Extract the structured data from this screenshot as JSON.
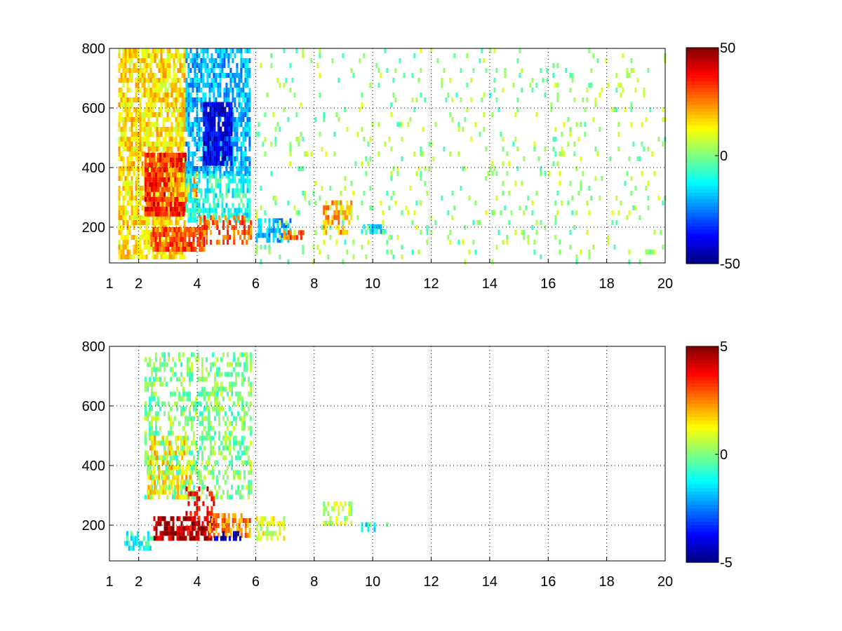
{
  "chart_data": [
    {
      "type": "heatmap",
      "title": "",
      "xlabel": "",
      "ylabel": "",
      "xlim": [
        1,
        20
      ],
      "ylim": [
        80,
        800
      ],
      "x_ticks": [
        1,
        2,
        4,
        6,
        8,
        10,
        12,
        14,
        16,
        18,
        20
      ],
      "y_ticks": [
        200,
        400,
        600,
        800
      ],
      "grid": true,
      "colormap": "jet",
      "colorbar": {
        "min": -50,
        "max": 50,
        "ticks": [
          50,
          0,
          -50
        ]
      },
      "features": [
        {
          "x": [
            1.3,
            3.6
          ],
          "y": [
            100,
            800
          ],
          "value": 15,
          "density": 0.75
        },
        {
          "x": [
            2.2,
            3.6
          ],
          "y": [
            250,
            450
          ],
          "value": 35,
          "density": 0.9
        },
        {
          "x": [
            2.4,
            4.2
          ],
          "y": [
            130,
            200
          ],
          "value": 30,
          "density": 0.85
        },
        {
          "x": [
            3.0,
            4.0
          ],
          "y": [
            300,
            400
          ],
          "value": 20,
          "density": 0.8
        },
        {
          "x": [
            3.6,
            5.8
          ],
          "y": [
            380,
            800
          ],
          "value": -20,
          "density": 0.7
        },
        {
          "x": [
            4.2,
            5.2
          ],
          "y": [
            420,
            620
          ],
          "value": -40,
          "density": 0.85
        },
        {
          "x": [
            3.6,
            5.8
          ],
          "y": [
            220,
            380
          ],
          "value": -10,
          "density": 0.6
        },
        {
          "x": [
            4.0,
            5.8
          ],
          "y": [
            150,
            240
          ],
          "value": 28,
          "density": 0.55
        },
        {
          "x": [
            6.0,
            7.2
          ],
          "y": [
            150,
            230
          ],
          "value": -20,
          "density": 0.6
        },
        {
          "x": [
            6.8,
            7.6
          ],
          "y": [
            160,
            190
          ],
          "value": 28,
          "density": 0.7
        },
        {
          "x": [
            8.3,
            9.3
          ],
          "y": [
            180,
            290
          ],
          "value": 22,
          "density": 0.55
        },
        {
          "x": [
            9.6,
            10.5
          ],
          "y": [
            180,
            210
          ],
          "value": -15,
          "density": 0.6
        },
        {
          "x": [
            6.0,
            20.0
          ],
          "y": [
            80,
            800
          ],
          "value": 2,
          "density": 0.07
        }
      ]
    },
    {
      "type": "heatmap",
      "title": "",
      "xlabel": "",
      "ylabel": "",
      "xlim": [
        1,
        20
      ],
      "ylim": [
        80,
        800
      ],
      "x_ticks": [
        1,
        2,
        4,
        6,
        8,
        10,
        12,
        14,
        16,
        18,
        20
      ],
      "y_ticks": [
        200,
        400,
        600,
        800
      ],
      "grid": true,
      "colormap": "jet",
      "colorbar": {
        "min": -5,
        "max": 5,
        "ticks": [
          5,
          0,
          -5
        ]
      },
      "features": [
        {
          "x": [
            2.2,
            5.8
          ],
          "y": [
            300,
            780
          ],
          "value": 0,
          "density": 0.45
        },
        {
          "x": [
            2.3,
            3.8
          ],
          "y": [
            300,
            500
          ],
          "value": 1.5,
          "density": 0.5
        },
        {
          "x": [
            2.5,
            4.5
          ],
          "y": [
            160,
            230
          ],
          "value": 4.5,
          "density": 0.7
        },
        {
          "x": [
            3.6,
            4.6
          ],
          "y": [
            180,
            330
          ],
          "value": 4,
          "density": 0.45
        },
        {
          "x": [
            1.5,
            2.5
          ],
          "y": [
            120,
            180
          ],
          "value": -1,
          "density": 0.5
        },
        {
          "x": [
            4.4,
            5.8
          ],
          "y": [
            160,
            240
          ],
          "value": 2.5,
          "density": 0.55
        },
        {
          "x": [
            4.5,
            5.5
          ],
          "y": [
            160,
            180
          ],
          "value": -4.5,
          "density": 0.6
        },
        {
          "x": [
            6.0,
            7.0
          ],
          "y": [
            160,
            230
          ],
          "value": 1,
          "density": 0.55
        },
        {
          "x": [
            8.3,
            9.3
          ],
          "y": [
            200,
            280
          ],
          "value": 0.5,
          "density": 0.5
        },
        {
          "x": [
            9.6,
            10.5
          ],
          "y": [
            190,
            210
          ],
          "value": -1,
          "density": 0.4
        }
      ]
    }
  ]
}
